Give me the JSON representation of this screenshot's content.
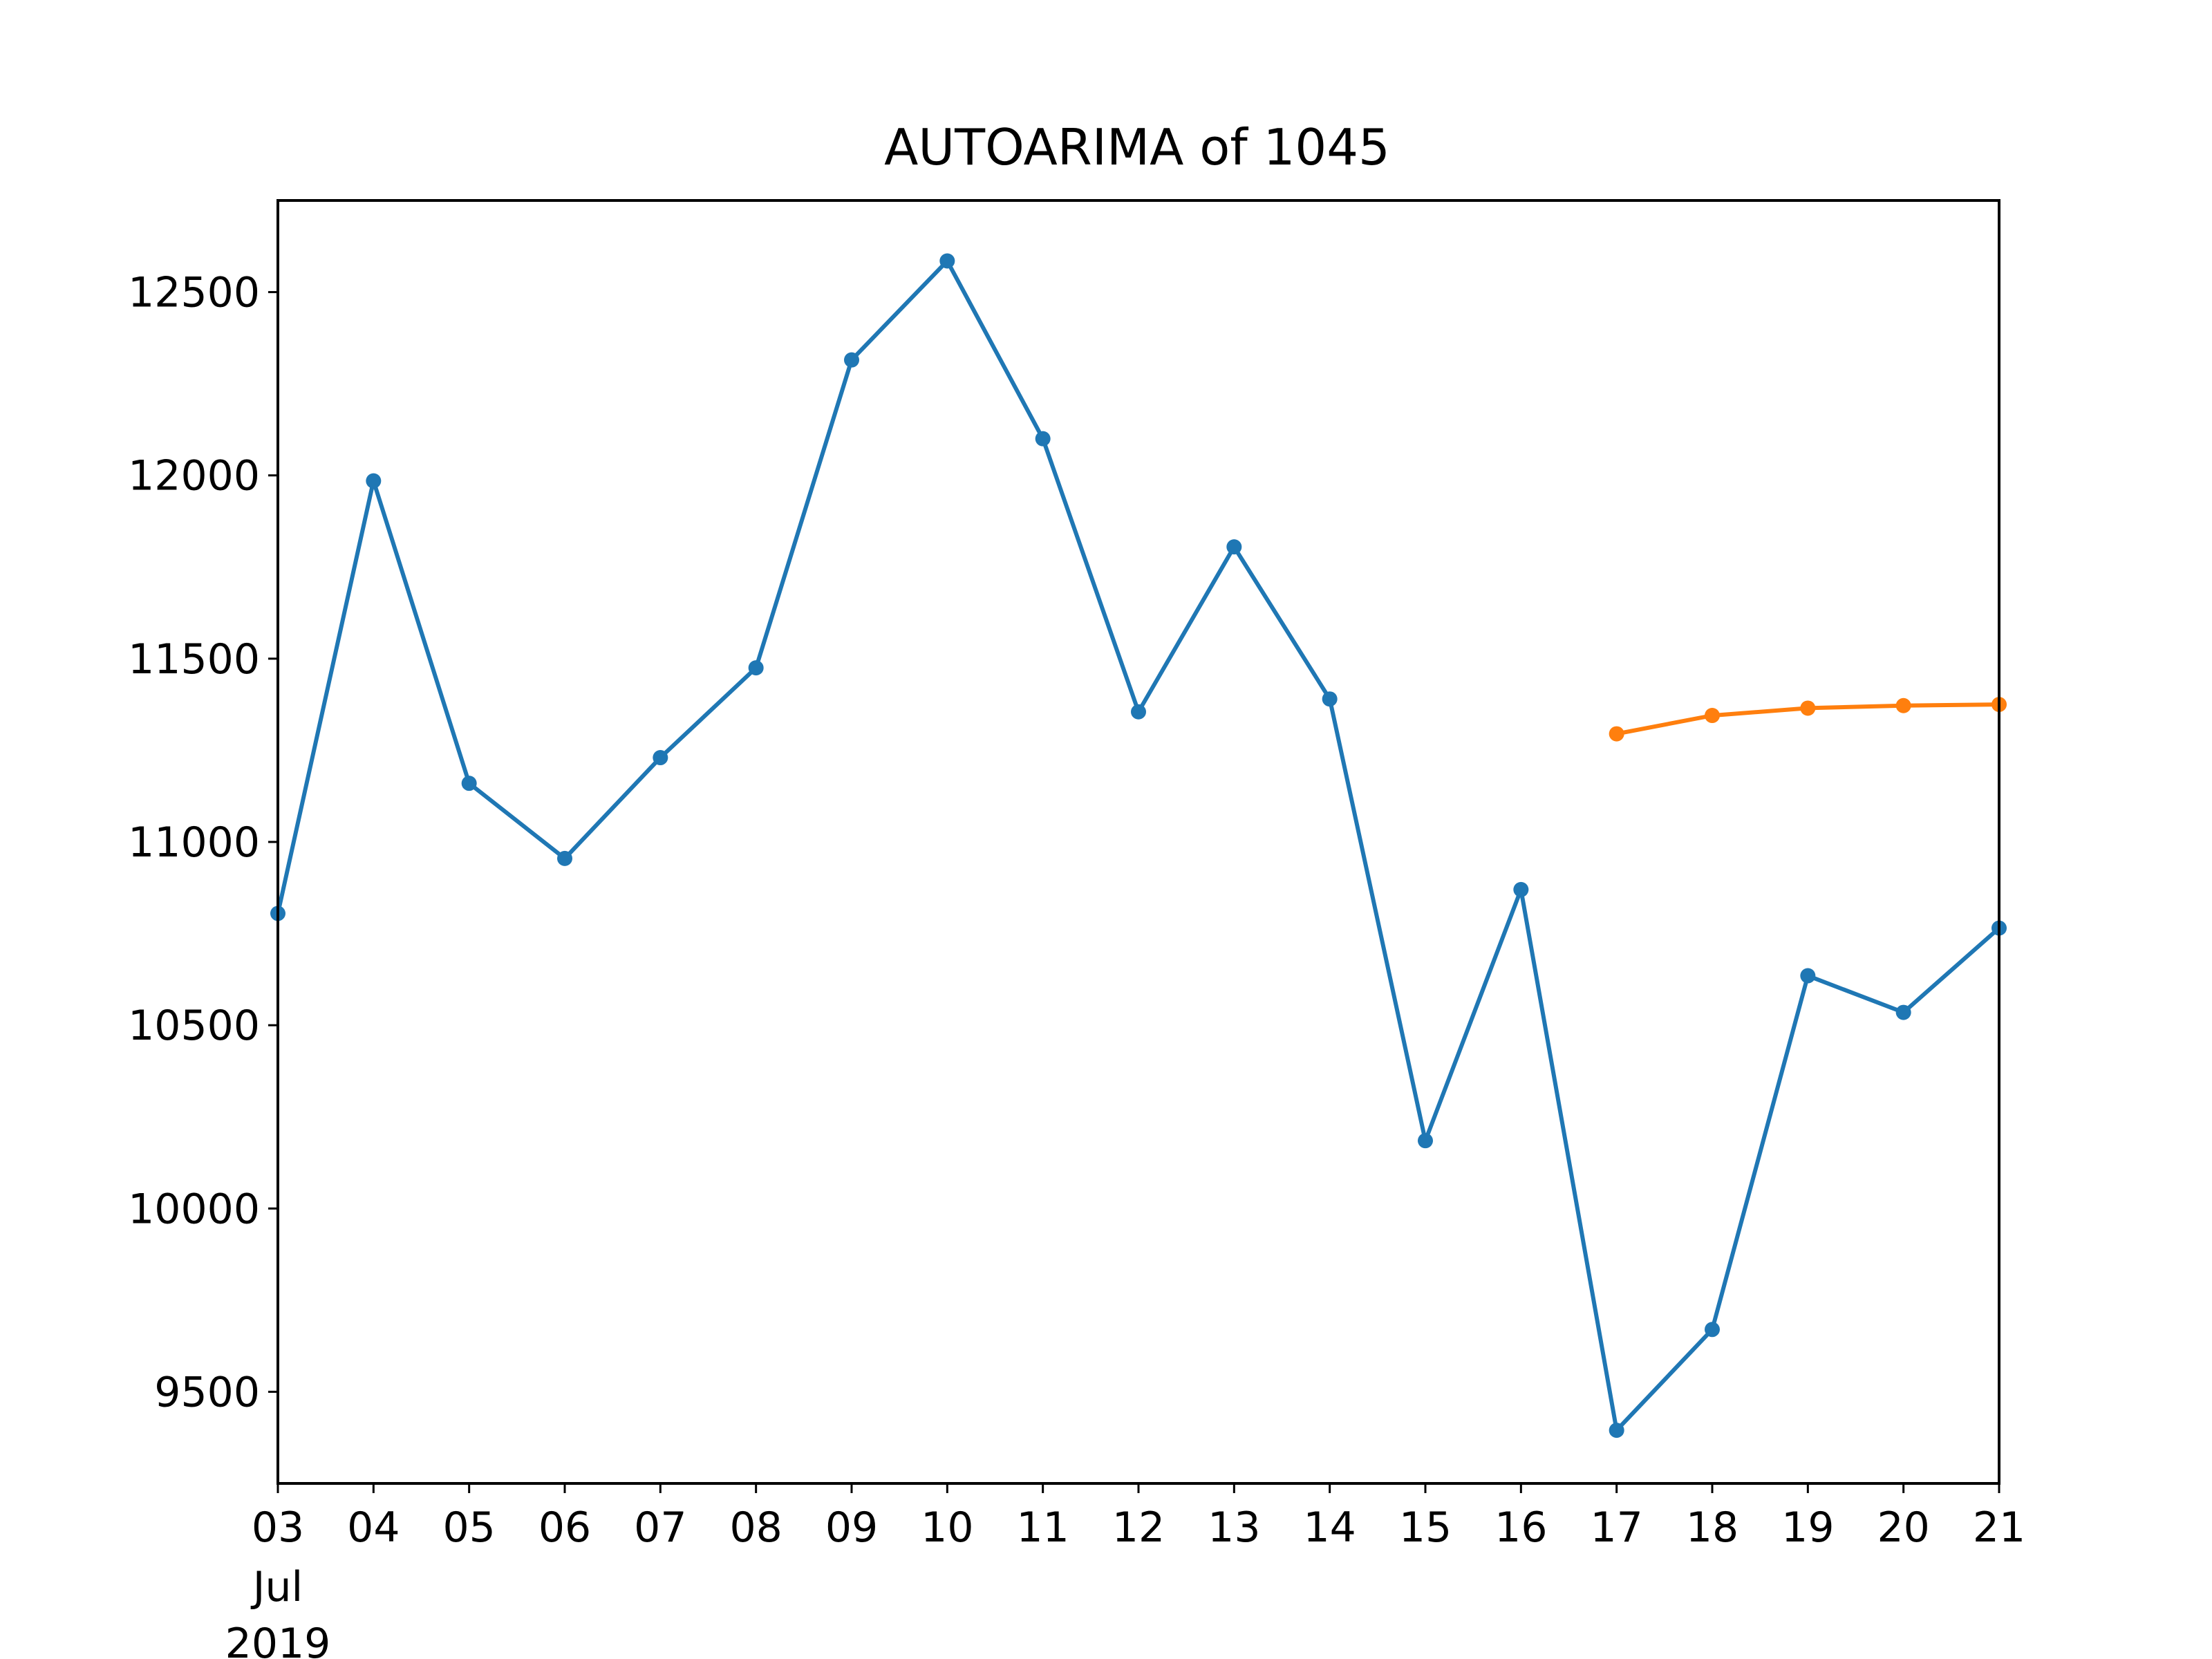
{
  "chart_data": {
    "type": "line",
    "title": "AUTOARIMA of 1045",
    "xlabel": "",
    "ylabel": "",
    "x_tick_labels": [
      "03",
      "04",
      "05",
      "06",
      "07",
      "08",
      "09",
      "10",
      "11",
      "12",
      "13",
      "14",
      "15",
      "16",
      "17",
      "18",
      "19",
      "20",
      "21"
    ],
    "x_tick_sublabels": [
      "Jul",
      "2019"
    ],
    "yticks": [
      9500,
      10000,
      10500,
      11000,
      11500,
      12000,
      12500
    ],
    "xlim": [
      "2019-07-03",
      "2019-07-21"
    ],
    "ylim": [
      9250,
      12750
    ],
    "grid": false,
    "series": [
      {
        "color": "#1f77b4",
        "x": [
          "2019-07-03",
          "2019-07-04",
          "2019-07-05",
          "2019-07-06",
          "2019-07-07",
          "2019-07-08",
          "2019-07-09",
          "2019-07-10",
          "2019-07-11",
          "2019-07-12",
          "2019-07-13",
          "2019-07-14",
          "2019-07-15",
          "2019-07-16",
          "2019-07-17",
          "2019-07-18",
          "2019-07-19",
          "2019-07-20",
          "2019-07-21"
        ],
        "values": [
          10805,
          11985,
          11160,
          10955,
          11230,
          11475,
          12315,
          12585,
          12100,
          11355,
          11805,
          11390,
          10185,
          10870,
          9395,
          9670,
          10635,
          10535,
          10765
        ]
      },
      {
        "color": "#ff7f0e",
        "x": [
          "2019-07-17",
          "2019-07-18",
          "2019-07-19",
          "2019-07-20",
          "2019-07-21"
        ],
        "values": [
          11295,
          11345,
          11365,
          11372,
          11375
        ]
      }
    ]
  }
}
